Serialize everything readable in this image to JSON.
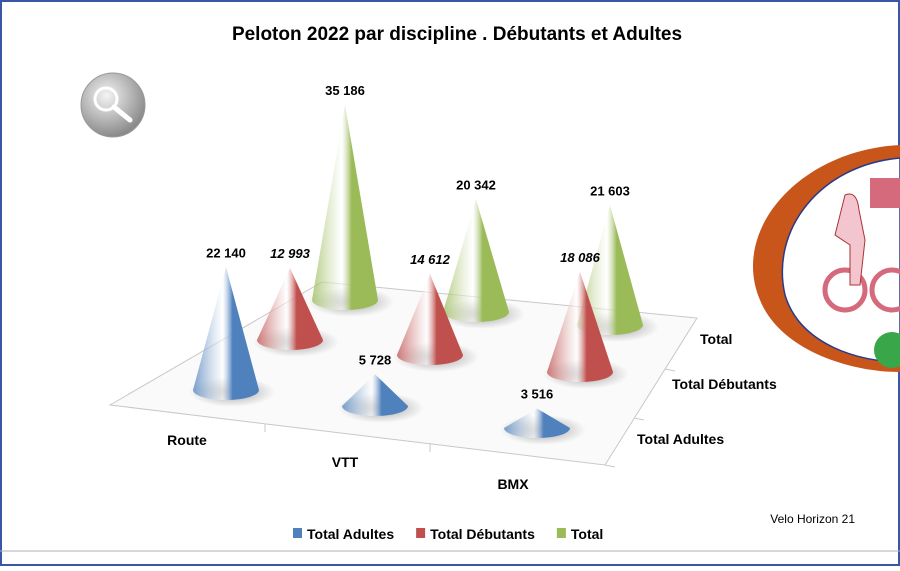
{
  "chart_data": {
    "type": "cone3d",
    "title": "Peloton 2022 par discipline . Débutants et  Adultes",
    "categories": [
      "Route",
      "VTT",
      "BMX"
    ],
    "series": [
      {
        "name": "Total Adultes",
        "color": "#4f81bd",
        "values": [
          22140,
          5728,
          3516
        ],
        "value_labels": [
          "22 140",
          "5 728",
          "3 516"
        ]
      },
      {
        "name": "Total Débutants",
        "color": "#c0504d",
        "values": [
          12993,
          14612,
          18086
        ],
        "value_labels": [
          "12 993",
          "14 612",
          "18 086"
        ]
      },
      {
        "name": "Total",
        "color": "#9bbb59",
        "values": [
          35186,
          20342,
          21603
        ],
        "value_labels": [
          "35 186",
          "20 342",
          "21 603"
        ]
      }
    ],
    "legend": "bottom",
    "note": "Velo Horizon 21"
  }
}
